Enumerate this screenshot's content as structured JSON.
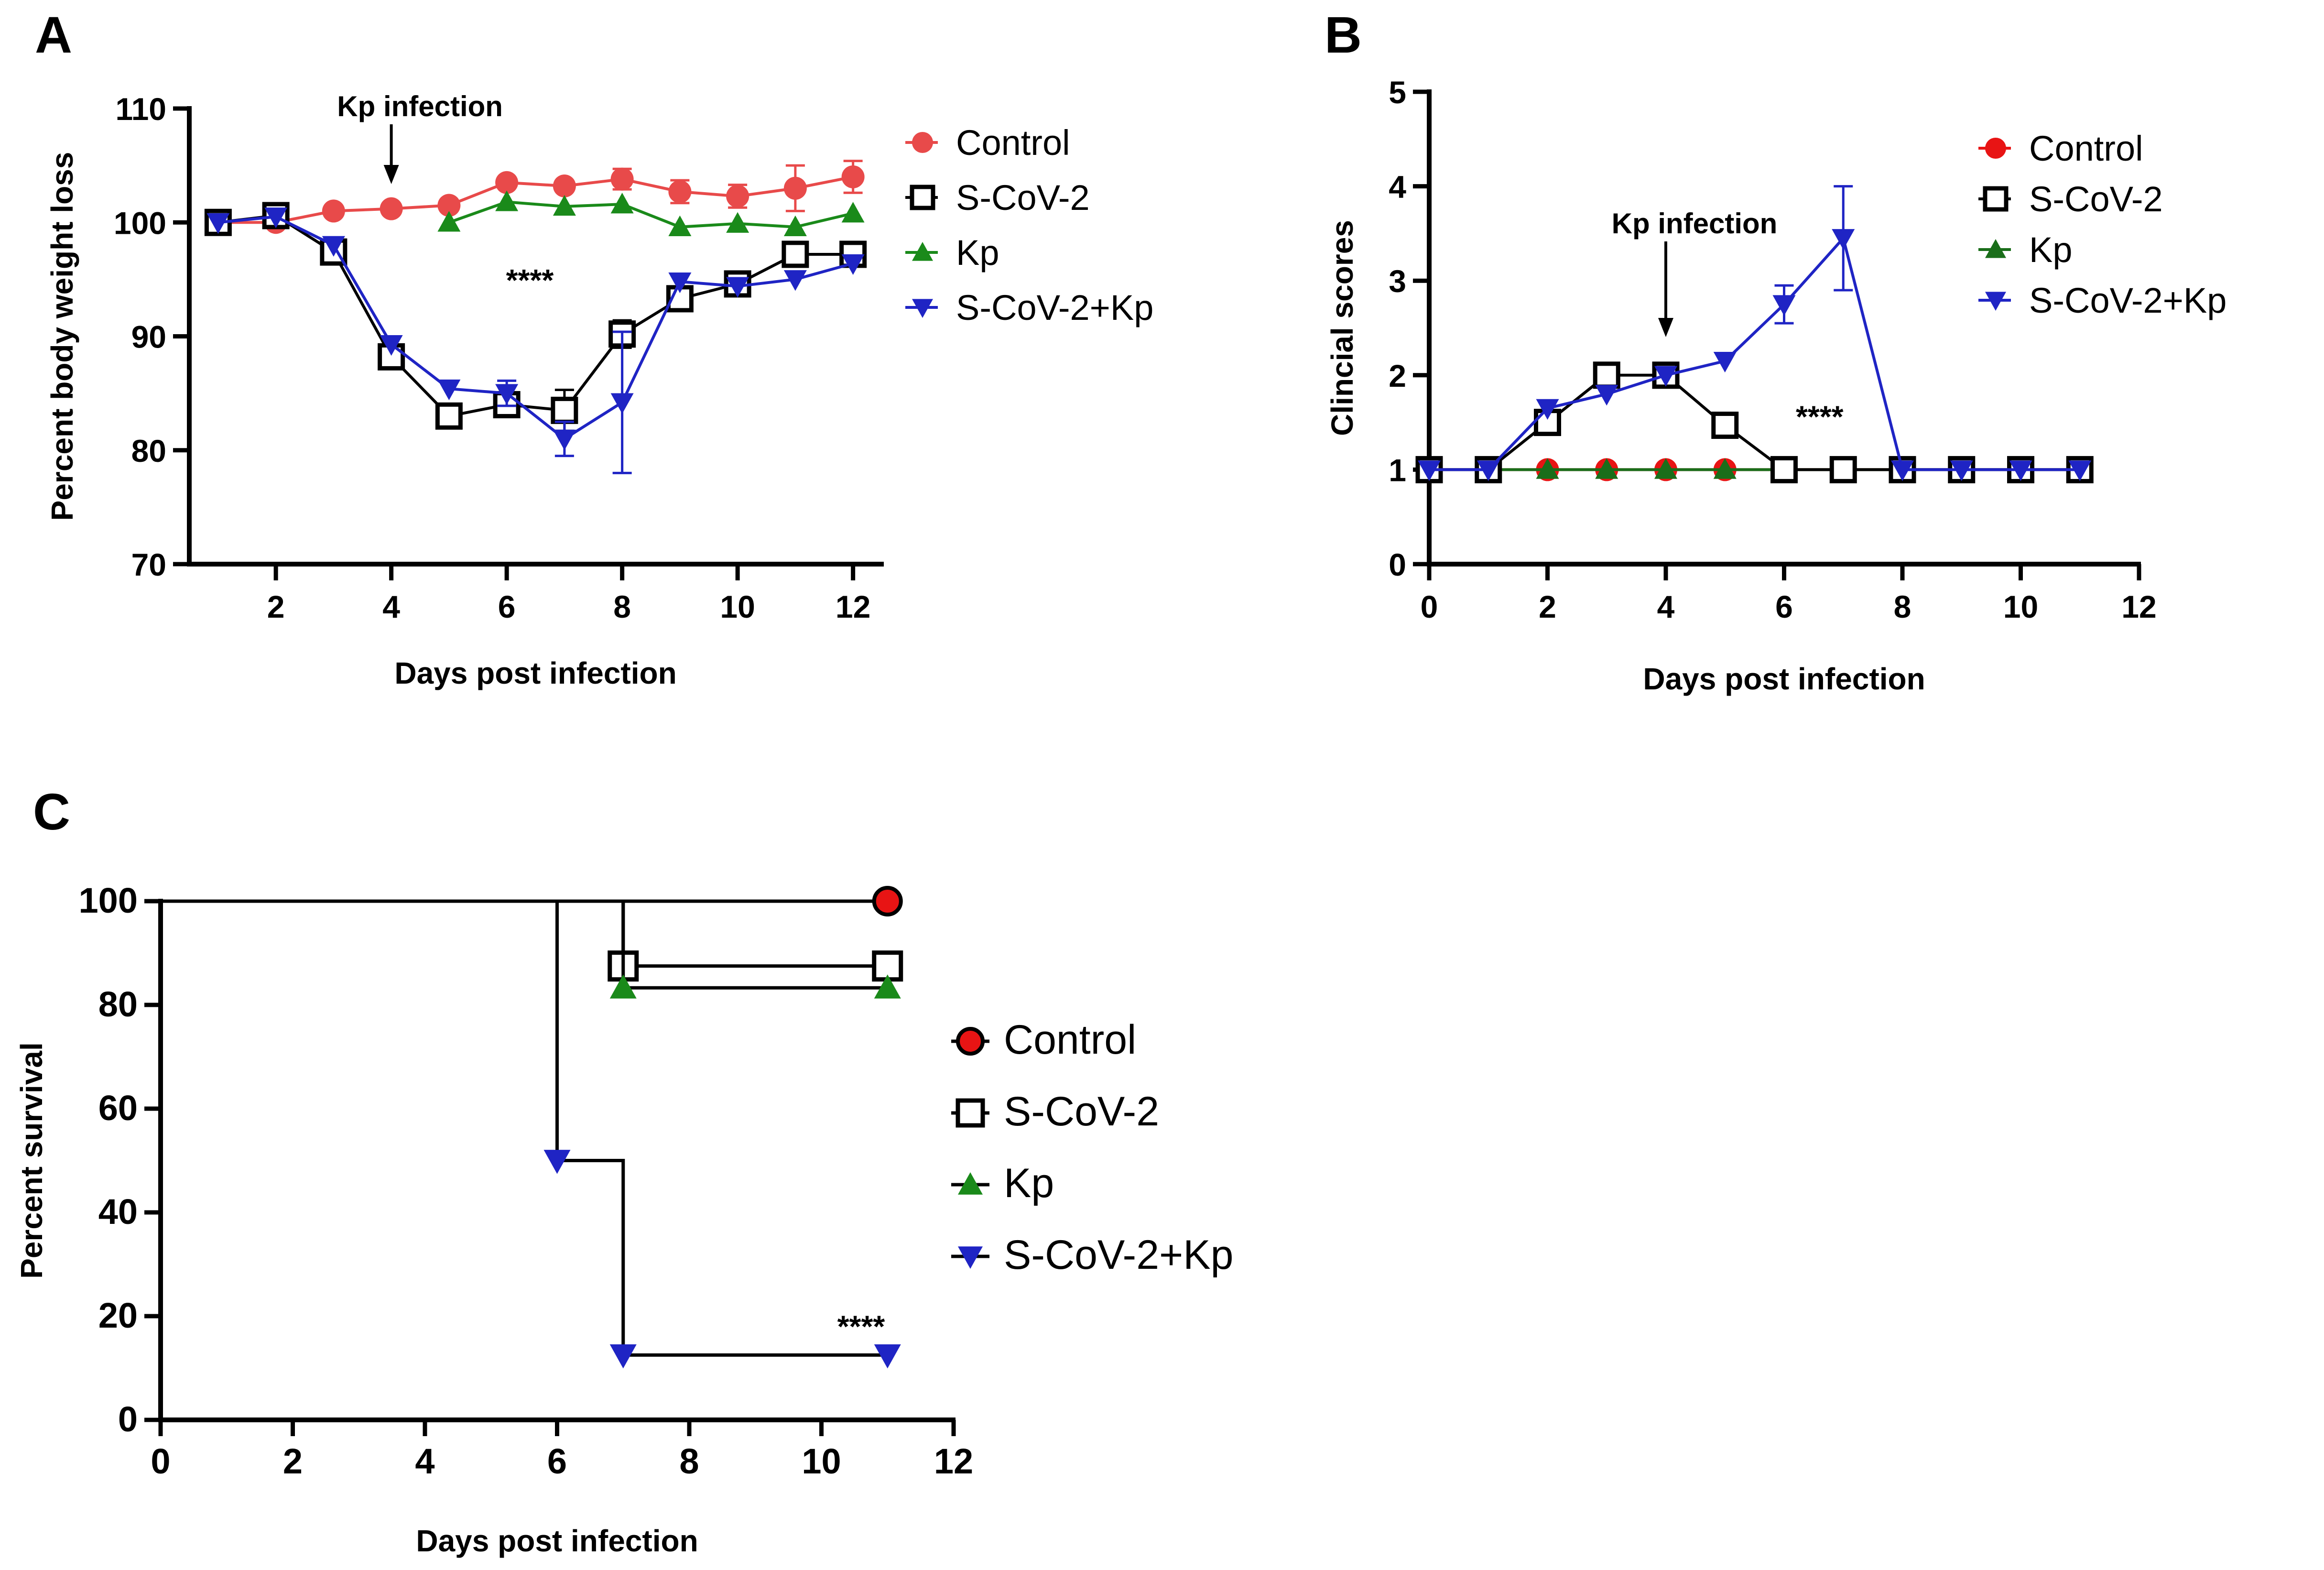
{
  "chart_data": [
    {
      "panel": "A",
      "type": "line",
      "title": "",
      "xlabel": "Days post infection",
      "ylabel": "Percent body weight loss",
      "xlim": [
        0.5,
        12.5
      ],
      "ylim": [
        70,
        110
      ],
      "xticks": [
        2,
        4,
        6,
        8,
        10,
        12
      ],
      "yticks": [
        70,
        80,
        90,
        100,
        110
      ],
      "annotation": "Kp infection",
      "annotation_arrow_x": 4,
      "significance": "****",
      "significance_at": [
        6.4,
        94
      ],
      "series": [
        {
          "name": "Control",
          "color": "#e84a4a",
          "marker": "circle",
          "x": [
            1,
            2,
            3,
            4,
            5,
            6,
            7,
            8,
            9,
            10,
            11,
            12
          ],
          "y": [
            100,
            100,
            101,
            101.2,
            101.5,
            103.5,
            103.2,
            103.8,
            102.7,
            102.3,
            103,
            104
          ],
          "err": [
            0,
            0,
            0,
            0,
            0,
            0,
            0,
            0.9,
            1,
            1,
            2,
            1.4
          ]
        },
        {
          "name": "S-CoV-2",
          "color": "#000000",
          "marker": "square-open",
          "x": [
            1,
            2,
            3,
            4,
            5,
            6,
            7,
            8,
            9,
            10,
            11,
            12
          ],
          "y": [
            100,
            100.6,
            97.4,
            88.2,
            83,
            84,
            83.5,
            90.2,
            93.3,
            94.6,
            97.2,
            97.2
          ],
          "err": [
            0,
            0,
            0,
            0,
            0,
            0.6,
            1.8,
            1.2,
            0,
            0,
            0.9,
            1
          ]
        },
        {
          "name": "Kp",
          "color": "#1a8a1a",
          "marker": "triangle-up",
          "x": [
            5,
            6,
            7,
            8,
            9,
            10,
            11,
            12
          ],
          "y": [
            100,
            101.8,
            101.4,
            101.6,
            99.6,
            99.9,
            99.6,
            100.8
          ],
          "err": [
            0,
            0,
            0,
            0,
            0,
            0,
            0,
            0
          ]
        },
        {
          "name": "S-CoV-2+Kp",
          "color": "#1f24c4",
          "marker": "triangle-down",
          "x": [
            1,
            2,
            3,
            4,
            5,
            6,
            7,
            8,
            9,
            10,
            11,
            12
          ],
          "y": [
            100,
            100.5,
            98,
            89.3,
            85.4,
            85,
            81,
            84.2,
            94.8,
            94.4,
            95,
            96.4
          ],
          "err": [
            0,
            0,
            0,
            0,
            0,
            1.1,
            1.5,
            6.2,
            0,
            0,
            0,
            0
          ]
        }
      ]
    },
    {
      "panel": "B",
      "type": "line",
      "title": "",
      "xlabel": "Days post infection",
      "ylabel": "Clincial scores",
      "xlim": [
        0,
        12
      ],
      "ylim": [
        0,
        5
      ],
      "xticks": [
        0,
        2,
        4,
        6,
        8,
        10,
        12
      ],
      "yticks": [
        0,
        1,
        2,
        3,
        4,
        5
      ],
      "annotation": "Kp infection",
      "annotation_arrow_x": 4,
      "significance": "****",
      "significance_at": [
        6.6,
        1.45
      ],
      "series": [
        {
          "name": "Control",
          "color": "#e81414",
          "marker": "circle",
          "x": [
            0,
            1,
            2,
            3,
            4,
            5,
            6,
            7,
            8,
            9,
            10,
            11
          ],
          "y": [
            1,
            1,
            1,
            1,
            1,
            1,
            1,
            1,
            1,
            1,
            1,
            1
          ],
          "err": [
            0,
            0,
            0,
            0,
            0,
            0,
            0,
            0,
            0,
            0,
            0,
            0
          ]
        },
        {
          "name": "S-CoV-2",
          "color": "#000000",
          "marker": "square-open",
          "x": [
            0,
            1,
            2,
            3,
            4,
            5,
            6,
            7,
            8,
            9,
            10,
            11
          ],
          "y": [
            1,
            1,
            1.5,
            2,
            2,
            1.47,
            1,
            1,
            1,
            1,
            1,
            1
          ],
          "err": [
            0,
            0,
            0,
            0,
            0,
            0,
            0,
            0,
            0,
            0,
            0,
            0
          ]
        },
        {
          "name": "Kp",
          "color": "#1a6e1a",
          "marker": "triangle-up",
          "x": [
            0,
            1,
            2,
            3,
            4,
            5,
            6,
            7,
            8,
            9,
            10,
            11
          ],
          "y": [
            1,
            1,
            1,
            1,
            1,
            1,
            1,
            1,
            1,
            1,
            1,
            1
          ],
          "err": [
            0,
            0,
            0,
            0,
            0,
            0,
            0,
            0,
            0,
            0,
            0,
            0
          ]
        },
        {
          "name": "S-CoV-2+Kp",
          "color": "#1f24c4",
          "marker": "triangle-down",
          "x": [
            0,
            1,
            2,
            3,
            4,
            5,
            6,
            7,
            8,
            9,
            10,
            11
          ],
          "y": [
            1,
            1,
            1.65,
            1.8,
            2,
            2.15,
            2.75,
            3.45,
            1,
            1,
            1,
            1
          ],
          "err": [
            0,
            0,
            0,
            0,
            0,
            0,
            0.2,
            0.55,
            0,
            0,
            0,
            0
          ]
        }
      ]
    },
    {
      "panel": "C",
      "type": "line",
      "subtype": "survival-step",
      "title": "",
      "xlabel": "Days post infection",
      "ylabel": "Percent survival",
      "xlim": [
        0,
        12
      ],
      "ylim": [
        0,
        100
      ],
      "xticks": [
        0,
        2,
        4,
        6,
        8,
        10,
        12
      ],
      "yticks": [
        0,
        20,
        40,
        60,
        80,
        100
      ],
      "significance": "****",
      "significance_at": [
        10.6,
        16
      ],
      "series": [
        {
          "name": "Control",
          "color": "#000000",
          "fill": "#e81414",
          "marker": "circle",
          "steps": [
            [
              0,
              100
            ],
            [
              11,
              100
            ]
          ],
          "markers": [
            [
              11,
              100
            ]
          ]
        },
        {
          "name": "S-CoV-2",
          "color": "#000000",
          "marker": "square-open",
          "steps": [
            [
              0,
              100
            ],
            [
              7,
              100
            ],
            [
              7,
              87.5
            ],
            [
              11,
              87.5
            ]
          ],
          "markers": [
            [
              7,
              87.5
            ],
            [
              11,
              87.5
            ]
          ]
        },
        {
          "name": "Kp",
          "color": "#000000",
          "fill": "#1a8a1a",
          "marker": "triangle-up",
          "steps": [
            [
              0,
              100
            ],
            [
              7,
              100
            ],
            [
              7,
              83.3
            ],
            [
              11,
              83.3
            ]
          ],
          "markers": [
            [
              7,
              83.3
            ],
            [
              11,
              83.3
            ]
          ]
        },
        {
          "name": "S-CoV-2+Kp",
          "color": "#000000",
          "fill": "#1f24c4",
          "marker": "triangle-down",
          "steps": [
            [
              0,
              100
            ],
            [
              6,
              100
            ],
            [
              6,
              50
            ],
            [
              7,
              50
            ],
            [
              7,
              12.5
            ],
            [
              11,
              12.5
            ]
          ],
          "markers": [
            [
              6,
              50
            ],
            [
              7,
              12.5
            ],
            [
              11,
              12.5
            ]
          ]
        }
      ]
    }
  ]
}
